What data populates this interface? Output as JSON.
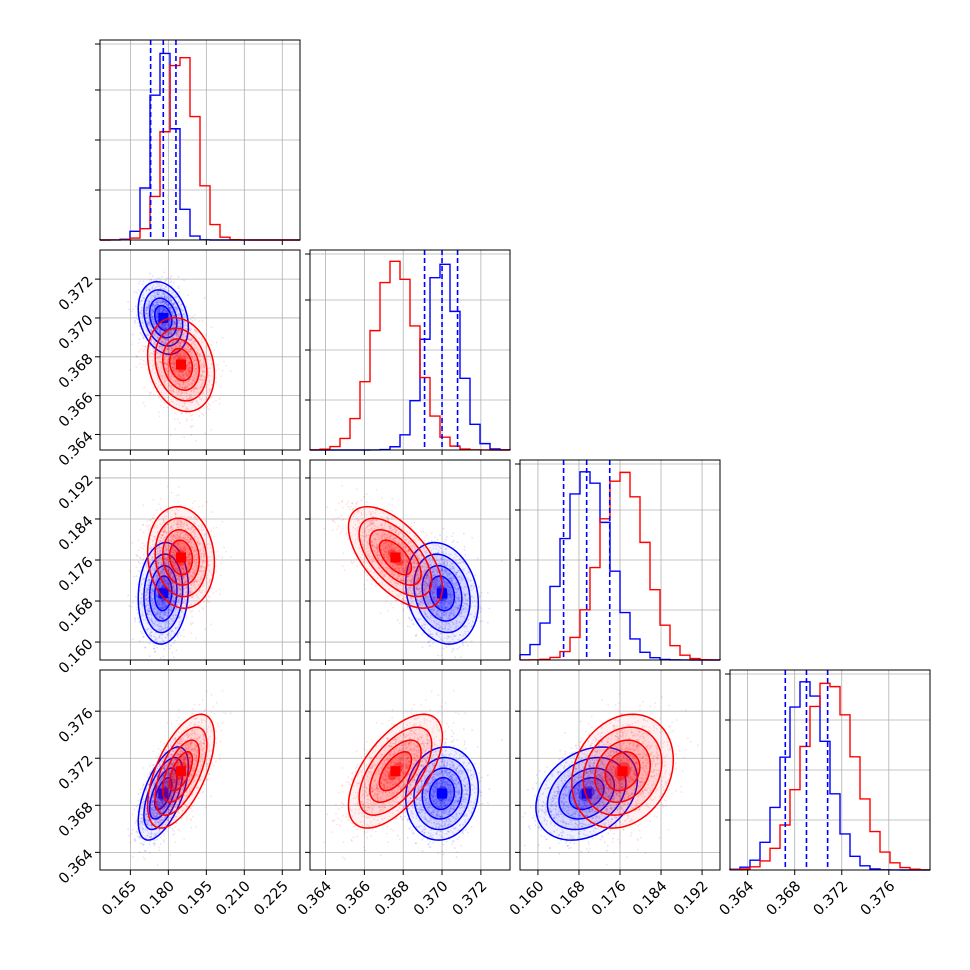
{
  "chart_data": {
    "type": "corner",
    "series": [
      {
        "name": "",
        "color": "#0000ff",
        "mean": [
          0.178,
          0.37,
          0.1695,
          0.369
        ],
        "sd": [
          0.0045,
          0.00085,
          0.0045,
          0.0018
        ],
        "quantiles_16_50_84": [
          [
            0.173,
            0.178,
            0.183
          ],
          [
            0.3691,
            0.37,
            0.3708
          ],
          [
            0.165,
            0.1695,
            0.174
          ],
          [
            0.3672,
            0.369,
            0.3708
          ]
        ]
      },
      {
        "name": "",
        "color": "#ff0000",
        "mean": [
          0.185,
          0.3676,
          0.1765,
          0.3709
        ],
        "sd": [
          0.006,
          0.0011,
          0.0045,
          0.0022
        ]
      }
    ],
    "correlations": {
      "blue": [
        [
          0,
          1,
          -0.25
        ],
        [
          0,
          2,
          0.1
        ],
        [
          0,
          3,
          0.6
        ],
        [
          1,
          2,
          -0.2
        ],
        [
          1,
          3,
          0.1
        ],
        [
          2,
          3,
          0.3
        ]
      ],
      "red": [
        [
          0,
          1,
          -0.2
        ],
        [
          0,
          2,
          -0.1
        ],
        [
          0,
          3,
          0.6
        ],
        [
          1,
          2,
          -0.6
        ],
        [
          1,
          3,
          0.6
        ],
        [
          2,
          3,
          0.2
        ]
      ]
    },
    "axes": [
      {
        "range": [
          0.153,
          0.232
        ],
        "ticks": [
          "0.165",
          "0.180",
          "0.195",
          "0.210",
          "0.225"
        ]
      },
      {
        "range": [
          0.3632,
          0.3735
        ],
        "ticks": [
          "0.364",
          "0.366",
          "0.368",
          "0.370",
          "0.372"
        ]
      },
      {
        "range": [
          0.1565,
          0.1955
        ],
        "ticks": [
          "0.160",
          "0.168",
          "0.176",
          "0.184",
          "0.192"
        ]
      },
      {
        "range": [
          0.3625,
          0.3795
        ],
        "ticks": [
          "0.364",
          "0.368",
          "0.372",
          "0.376"
        ]
      }
    ],
    "grid": true
  }
}
